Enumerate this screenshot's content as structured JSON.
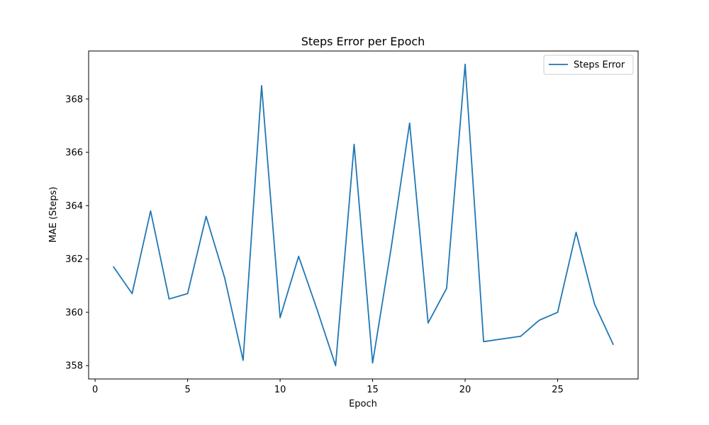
{
  "chart_data": {
    "type": "line",
    "title": "Steps Error per Epoch",
    "xlabel": "Epoch",
    "ylabel": "MAE (Steps)",
    "xlim": [
      -0.35,
      29.35
    ],
    "ylim": [
      357.5,
      369.8
    ],
    "xticks": [
      0,
      5,
      10,
      15,
      20,
      25
    ],
    "yticks": [
      358,
      360,
      362,
      364,
      366,
      368
    ],
    "grid": false,
    "legend_position": "top-right",
    "series": [
      {
        "name": "Steps Error",
        "color": "#1f77b4",
        "x": [
          1,
          2,
          3,
          4,
          5,
          6,
          7,
          8,
          9,
          10,
          11,
          12,
          13,
          14,
          15,
          16,
          17,
          18,
          19,
          20,
          21,
          22,
          23,
          24,
          25,
          26,
          27,
          28
        ],
        "values": [
          361.7,
          360.7,
          363.8,
          360.5,
          360.7,
          363.6,
          361.3,
          358.2,
          368.5,
          359.8,
          362.1,
          360.1,
          358.0,
          366.3,
          358.1,
          362.4,
          367.1,
          359.6,
          360.9,
          369.3,
          358.9,
          359.0,
          359.1,
          359.7,
          360.0,
          363.0,
          360.3,
          358.8
        ]
      }
    ]
  }
}
